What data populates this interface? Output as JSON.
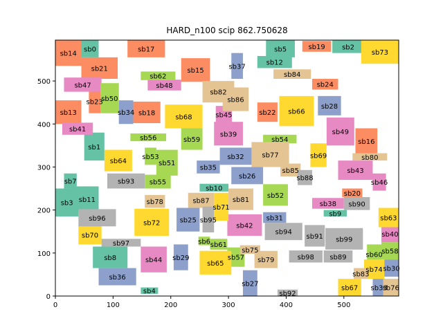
{
  "chart_data": {
    "type": "rectangle-packing",
    "title": "HARD_n100 scip 862.750628",
    "xlim": [
      0,
      595
    ],
    "ylim": [
      0,
      595
    ],
    "x_ticks": [
      0,
      100,
      200,
      300,
      400,
      500
    ],
    "y_ticks": [
      0,
      100,
      200,
      300,
      400,
      500
    ],
    "grid": false,
    "legend": "none",
    "palette": {
      "teal": "#66c2a5",
      "orange": "#fc8d62",
      "blue": "#8da0cb",
      "pink": "#e78ac3",
      "green": "#a6d854",
      "yellow": "#ffd92f",
      "tan": "#e5c494",
      "gray": "#b3b3b3"
    },
    "rects": [
      {
        "label": "sb0",
        "x": 45,
        "y": 555,
        "w": 30,
        "h": 40,
        "color": "teal"
      },
      {
        "label": "sb1",
        "x": 50,
        "y": 315,
        "w": 35,
        "h": 65,
        "color": "teal"
      },
      {
        "label": "sb2",
        "x": 480,
        "y": 565,
        "w": 55,
        "h": 30,
        "color": "teal"
      },
      {
        "label": "sb3",
        "x": 0,
        "y": 185,
        "w": 40,
        "h": 65,
        "color": "teal"
      },
      {
        "label": "sb4",
        "x": 148,
        "y": 5,
        "w": 30,
        "h": 15,
        "color": "teal"
      },
      {
        "label": "sb5",
        "x": 365,
        "y": 555,
        "w": 50,
        "h": 40,
        "color": "teal"
      },
      {
        "label": "sb6",
        "x": 248,
        "y": 118,
        "w": 20,
        "h": 20,
        "color": "green"
      },
      {
        "label": "sb7",
        "x": 15,
        "y": 250,
        "w": 22,
        "h": 35,
        "color": "teal"
      },
      {
        "label": "sb8",
        "x": 65,
        "y": 65,
        "w": 60,
        "h": 50,
        "color": "teal"
      },
      {
        "label": "sb9",
        "x": 465,
        "y": 185,
        "w": 40,
        "h": 15,
        "color": "teal"
      },
      {
        "label": "sb10",
        "x": 250,
        "y": 243,
        "w": 50,
        "h": 18,
        "color": "teal"
      },
      {
        "label": "sb11",
        "x": 35,
        "y": 195,
        "w": 40,
        "h": 60,
        "color": "teal"
      },
      {
        "label": "sb12",
        "x": 350,
        "y": 530,
        "w": 60,
        "h": 28,
        "color": "teal"
      },
      {
        "label": "sb13",
        "x": 0,
        "y": 400,
        "w": 45,
        "h": 55,
        "color": "orange"
      },
      {
        "label": "sb14",
        "x": 0,
        "y": 535,
        "w": 45,
        "h": 60,
        "color": "orange"
      },
      {
        "label": "sb15",
        "x": 218,
        "y": 498,
        "w": 50,
        "h": 55,
        "color": "orange"
      },
      {
        "label": "sb16",
        "x": 520,
        "y": 330,
        "w": 38,
        "h": 60,
        "color": "orange"
      },
      {
        "label": "sb17",
        "x": 125,
        "y": 555,
        "w": 65,
        "h": 40,
        "color": "orange"
      },
      {
        "label": "sb18",
        "x": 135,
        "y": 402,
        "w": 47,
        "h": 50,
        "color": "orange"
      },
      {
        "label": "sb19",
        "x": 428,
        "y": 568,
        "w": 50,
        "h": 25,
        "color": "orange"
      },
      {
        "label": "sb20",
        "x": 497,
        "y": 230,
        "w": 35,
        "h": 20,
        "color": "orange"
      },
      {
        "label": "sb21",
        "x": 45,
        "y": 505,
        "w": 63,
        "h": 50,
        "color": "orange"
      },
      {
        "label": "sb22",
        "x": 350,
        "y": 405,
        "w": 35,
        "h": 45,
        "color": "orange"
      },
      {
        "label": "sb23",
        "x": 58,
        "y": 425,
        "w": 20,
        "h": 55,
        "color": "orange"
      },
      {
        "label": "sb24",
        "x": 445,
        "y": 480,
        "w": 45,
        "h": 25,
        "color": "orange"
      },
      {
        "label": "sb25",
        "x": 210,
        "y": 150,
        "w": 40,
        "h": 55,
        "color": "blue"
      },
      {
        "label": "sb26",
        "x": 305,
        "y": 260,
        "w": 55,
        "h": 40,
        "color": "blue"
      },
      {
        "label": "sb27",
        "x": 325,
        "y": 0,
        "w": 25,
        "h": 60,
        "color": "blue"
      },
      {
        "label": "sb28",
        "x": 455,
        "y": 420,
        "w": 40,
        "h": 45,
        "color": "blue"
      },
      {
        "label": "sb29",
        "x": 205,
        "y": 60,
        "w": 25,
        "h": 60,
        "color": "blue"
      },
      {
        "label": "sb30",
        "x": 570,
        "y": 45,
        "w": 25,
        "h": 40,
        "color": "blue"
      },
      {
        "label": "sb31",
        "x": 360,
        "y": 170,
        "w": 40,
        "h": 25,
        "color": "blue"
      },
      {
        "label": "sb32",
        "x": 285,
        "y": 305,
        "w": 55,
        "h": 40,
        "color": "blue"
      },
      {
        "label": "sb33",
        "x": 550,
        "y": 0,
        "w": 22,
        "h": 40,
        "color": "blue"
      },
      {
        "label": "sb34",
        "x": 110,
        "y": 400,
        "w": 25,
        "h": 55,
        "color": "blue"
      },
      {
        "label": "sb35",
        "x": 245,
        "y": 285,
        "w": 40,
        "h": 30,
        "color": "blue"
      },
      {
        "label": "sb36",
        "x": 75,
        "y": 25,
        "w": 65,
        "h": 40,
        "color": "blue"
      },
      {
        "label": "sb37",
        "x": 305,
        "y": 505,
        "w": 20,
        "h": 60,
        "color": "blue"
      },
      {
        "label": "sb38",
        "x": 445,
        "y": 203,
        "w": 55,
        "h": 25,
        "color": "pink"
      },
      {
        "label": "sb39",
        "x": 275,
        "y": 350,
        "w": 50,
        "h": 55,
        "color": "pink"
      },
      {
        "label": "sb40",
        "x": 565,
        "y": 125,
        "w": 30,
        "h": 40,
        "color": "pink"
      },
      {
        "label": "sb41",
        "x": 12,
        "y": 375,
        "w": 53,
        "h": 28,
        "color": "pink"
      },
      {
        "label": "sb42",
        "x": 298,
        "y": 140,
        "w": 60,
        "h": 50,
        "color": "pink"
      },
      {
        "label": "sb43",
        "x": 490,
        "y": 270,
        "w": 60,
        "h": 45,
        "color": "pink"
      },
      {
        "label": "sb44",
        "x": 148,
        "y": 55,
        "w": 45,
        "h": 60,
        "color": "pink"
      },
      {
        "label": "sb45",
        "x": 278,
        "y": 402,
        "w": 28,
        "h": 40,
        "color": "pink"
      },
      {
        "label": "sb46",
        "x": 550,
        "y": 245,
        "w": 23,
        "h": 40,
        "color": "pink"
      },
      {
        "label": "sb47",
        "x": 15,
        "y": 475,
        "w": 65,
        "h": 33,
        "color": "pink"
      },
      {
        "label": "sb48",
        "x": 160,
        "y": 478,
        "w": 58,
        "h": 25,
        "color": "pink"
      },
      {
        "label": "sb49",
        "x": 470,
        "y": 350,
        "w": 48,
        "h": 65,
        "color": "pink"
      },
      {
        "label": "sb50",
        "x": 78,
        "y": 425,
        "w": 32,
        "h": 70,
        "color": "green"
      },
      {
        "label": "sb51",
        "x": 175,
        "y": 280,
        "w": 37,
        "h": 60,
        "color": "green"
      },
      {
        "label": "sb52",
        "x": 360,
        "y": 210,
        "w": 43,
        "h": 50,
        "color": "green"
      },
      {
        "label": "sb53",
        "x": 155,
        "y": 305,
        "w": 20,
        "h": 40,
        "color": "green"
      },
      {
        "label": "sb54",
        "x": 360,
        "y": 355,
        "w": 58,
        "h": 20,
        "color": "green"
      },
      {
        "label": "sb55",
        "x": 155,
        "y": 250,
        "w": 45,
        "h": 32,
        "color": "green"
      },
      {
        "label": "sb56",
        "x": 130,
        "y": 360,
        "w": 62,
        "h": 18,
        "color": "green"
      },
      {
        "label": "sb57",
        "x": 298,
        "y": 68,
        "w": 30,
        "h": 45,
        "color": "green"
      },
      {
        "label": "sb58",
        "x": 565,
        "y": 85,
        "w": 30,
        "h": 40,
        "color": "green"
      },
      {
        "label": "sb59",
        "x": 218,
        "y": 340,
        "w": 37,
        "h": 50,
        "color": "green"
      },
      {
        "label": "sb60",
        "x": 540,
        "y": 75,
        "w": 25,
        "h": 45,
        "color": "green"
      },
      {
        "label": "sb61",
        "x": 268,
        "y": 108,
        "w": 30,
        "h": 25,
        "color": "green"
      },
      {
        "label": "sb62",
        "x": 148,
        "y": 502,
        "w": 60,
        "h": 20,
        "color": "green"
      },
      {
        "label": "sb63",
        "x": 560,
        "y": 160,
        "w": 35,
        "h": 45,
        "color": "yellow"
      },
      {
        "label": "sb64",
        "x": 85,
        "y": 290,
        "w": 48,
        "h": 50,
        "color": "yellow"
      },
      {
        "label": "sb65",
        "x": 250,
        "y": 50,
        "w": 55,
        "h": 55,
        "color": "yellow"
      },
      {
        "label": "sb66",
        "x": 388,
        "y": 395,
        "w": 60,
        "h": 70,
        "color": "yellow"
      },
      {
        "label": "sb67",
        "x": 490,
        "y": 0,
        "w": 40,
        "h": 40,
        "color": "yellow"
      },
      {
        "label": "sb68",
        "x": 190,
        "y": 390,
        "w": 65,
        "h": 55,
        "color": "yellow"
      },
      {
        "label": "sb69",
        "x": 442,
        "y": 300,
        "w": 28,
        "h": 55,
        "color": "yellow"
      },
      {
        "label": "sb70",
        "x": 40,
        "y": 120,
        "w": 40,
        "h": 45,
        "color": "yellow"
      },
      {
        "label": "sb71",
        "x": 275,
        "y": 175,
        "w": 25,
        "h": 65,
        "color": "yellow"
      },
      {
        "label": "sb72",
        "x": 137,
        "y": 140,
        "w": 60,
        "h": 63,
        "color": "yellow"
      },
      {
        "label": "sb73",
        "x": 530,
        "y": 540,
        "w": 65,
        "h": 55,
        "color": "yellow"
      },
      {
        "label": "sb74",
        "x": 535,
        "y": 40,
        "w": 35,
        "h": 45,
        "color": "yellow"
      },
      {
        "label": "sb75",
        "x": 320,
        "y": 98,
        "w": 35,
        "h": 20,
        "color": "tan"
      },
      {
        "label": "sb76",
        "x": 568,
        "y": 0,
        "w": 27,
        "h": 40,
        "color": "tan"
      },
      {
        "label": "sb77",
        "x": 340,
        "y": 300,
        "w": 65,
        "h": 58,
        "color": "tan"
      },
      {
        "label": "sb78",
        "x": 155,
        "y": 205,
        "w": 35,
        "h": 30,
        "color": "tan"
      },
      {
        "label": "sb79",
        "x": 345,
        "y": 65,
        "w": 40,
        "h": 40,
        "color": "tan"
      },
      {
        "label": "sb80",
        "x": 515,
        "y": 315,
        "w": 60,
        "h": 17,
        "color": "tan"
      },
      {
        "label": "sb81",
        "x": 300,
        "y": 200,
        "w": 43,
        "h": 50,
        "color": "tan"
      },
      {
        "label": "sb82",
        "x": 255,
        "y": 450,
        "w": 55,
        "h": 50,
        "color": "tan"
      },
      {
        "label": "sb83",
        "x": 517,
        "y": 40,
        "w": 25,
        "h": 25,
        "color": "tan"
      },
      {
        "label": "sb84",
        "x": 378,
        "y": 505,
        "w": 65,
        "h": 22,
        "color": "tan"
      },
      {
        "label": "sb85",
        "x": 390,
        "y": 278,
        "w": 35,
        "h": 30,
        "color": "tan"
      },
      {
        "label": "sb86",
        "x": 290,
        "y": 430,
        "w": 45,
        "h": 55,
        "color": "tan"
      },
      {
        "label": "sb87",
        "x": 230,
        "y": 205,
        "w": 45,
        "h": 35,
        "color": "tan"
      },
      {
        "label": "sb88",
        "x": 420,
        "y": 258,
        "w": 25,
        "h": 35,
        "color": "gray"
      },
      {
        "label": "sb89",
        "x": 465,
        "y": 78,
        "w": 50,
        "h": 28,
        "color": "gray"
      },
      {
        "label": "sb90",
        "x": 500,
        "y": 200,
        "w": 45,
        "h": 30,
        "color": "gray"
      },
      {
        "label": "sb91",
        "x": 432,
        "y": 115,
        "w": 35,
        "h": 50,
        "color": "gray"
      },
      {
        "label": "sb92",
        "x": 385,
        "y": 0,
        "w": 35,
        "h": 15,
        "color": "gray"
      },
      {
        "label": "sb93",
        "x": 90,
        "y": 250,
        "w": 65,
        "h": 35,
        "color": "gray"
      },
      {
        "label": "sb94",
        "x": 363,
        "y": 130,
        "w": 65,
        "h": 40,
        "color": "gray"
      },
      {
        "label": "sb95",
        "x": 255,
        "y": 148,
        "w": 20,
        "h": 60,
        "color": "gray"
      },
      {
        "label": "sb96",
        "x": 40,
        "y": 162,
        "w": 65,
        "h": 40,
        "color": "gray"
      },
      {
        "label": "sb97",
        "x": 80,
        "y": 115,
        "w": 68,
        "h": 18,
        "color": "gray"
      },
      {
        "label": "sb98",
        "x": 405,
        "y": 78,
        "w": 58,
        "h": 28,
        "color": "gray"
      },
      {
        "label": "sb99",
        "x": 468,
        "y": 108,
        "w": 65,
        "h": 50,
        "color": "gray"
      }
    ]
  }
}
